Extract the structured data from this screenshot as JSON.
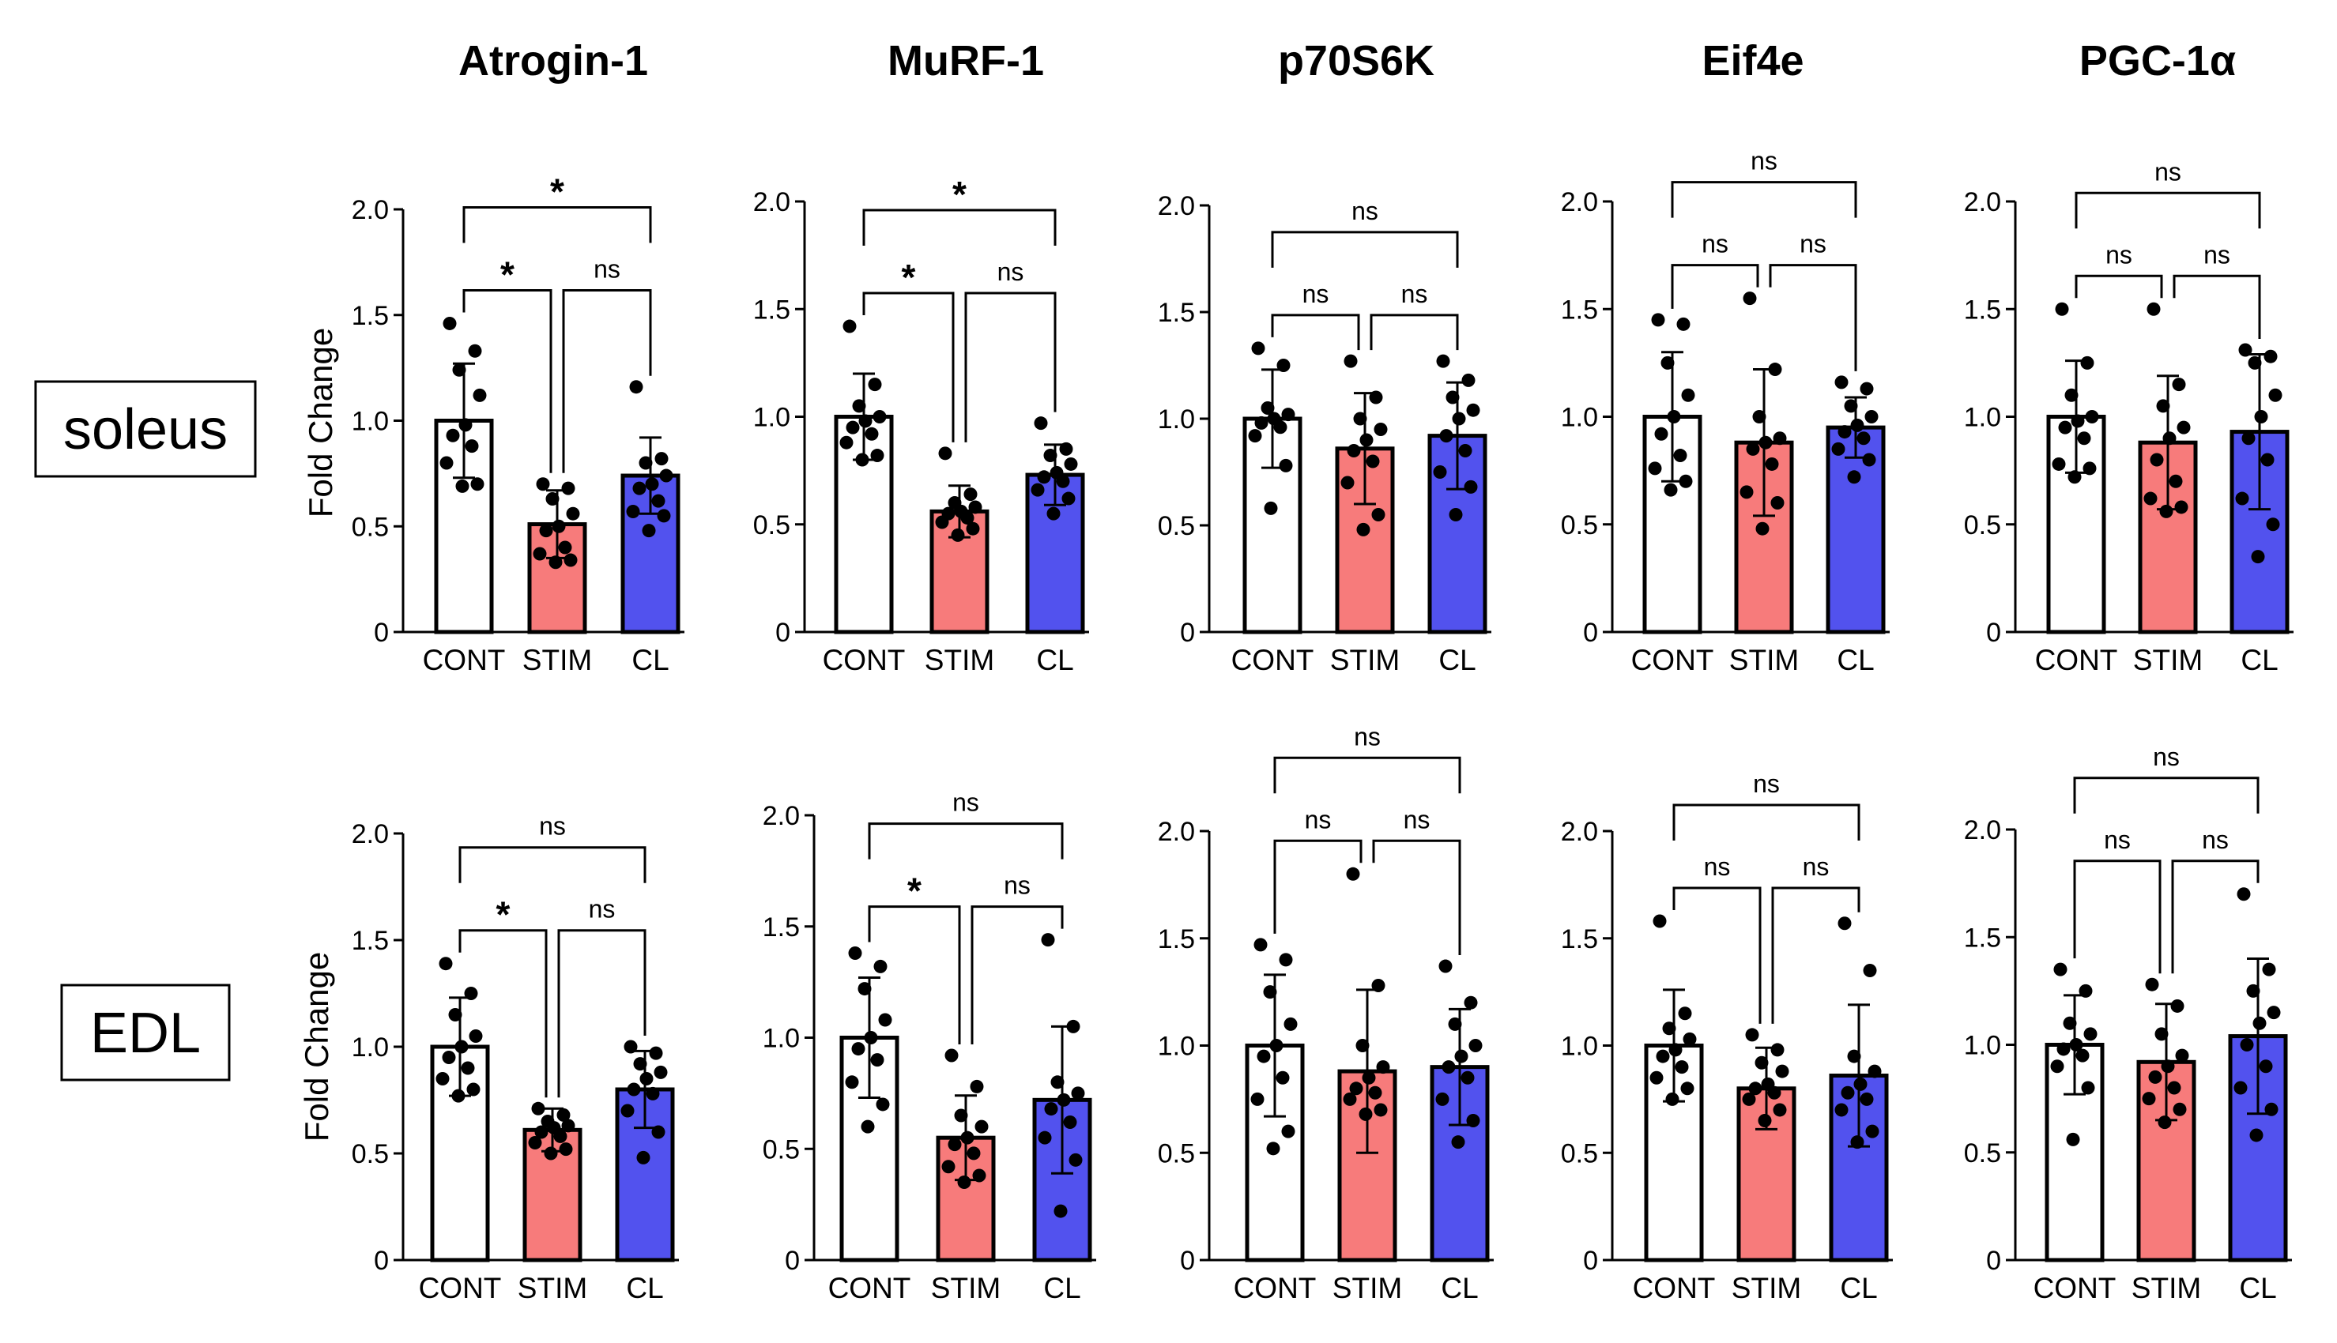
{
  "figure": {
    "row_labels": [
      "soleus",
      "EDL"
    ],
    "y_axis_label": "Fold Change",
    "colors": {
      "CONT": "#ffffff",
      "STIM": "#f77b7b",
      "CL": "#5252ee",
      "outline": "#000000"
    }
  },
  "chart_data": [
    {
      "type": "bar",
      "panel": "soleus-atrogin-1",
      "title": "Atrogin-1",
      "categories": [
        "CONT",
        "STIM",
        "CL"
      ],
      "ylabel": "Fold Change",
      "ylim": [
        0,
        2.0
      ],
      "yticks": [
        "0",
        "0.5",
        "1.0",
        "1.5",
        "2.0"
      ],
      "values": [
        1.0,
        0.51,
        0.74
      ],
      "sd": [
        0.27,
        0.16,
        0.18
      ],
      "points": [
        [
          1.46,
          1.33,
          1.24,
          1.12,
          0.98,
          0.93,
          0.88,
          0.8,
          0.7,
          0.69
        ],
        [
          0.7,
          0.68,
          0.63,
          0.56,
          0.5,
          0.48,
          0.4,
          0.37,
          0.34,
          0.33
        ],
        [
          1.16,
          0.82,
          0.8,
          0.74,
          0.7,
          0.68,
          0.62,
          0.57,
          0.55,
          0.48
        ]
      ],
      "comparisons": [
        {
          "pair": [
            0,
            1
          ],
          "label": "*"
        },
        {
          "pair": [
            1,
            2
          ],
          "label": "ns"
        },
        {
          "pair": [
            0,
            2
          ],
          "label": "*"
        }
      ]
    },
    {
      "type": "bar",
      "panel": "soleus-murf-1",
      "title": "MuRF-1",
      "categories": [
        "CONT",
        "STIM",
        "CL"
      ],
      "ylabel": "Fold Change",
      "ylim": [
        0,
        2.0
      ],
      "yticks": [
        "0",
        "0.5",
        "1.0",
        "1.5",
        "2.0"
      ],
      "values": [
        1.0,
        0.56,
        0.73
      ],
      "sd": [
        0.2,
        0.12,
        0.14
      ],
      "points": [
        [
          1.42,
          1.15,
          1.05,
          1.0,
          0.98,
          0.95,
          0.92,
          0.88,
          0.82,
          0.8
        ],
        [
          0.83,
          0.64,
          0.6,
          0.58,
          0.56,
          0.55,
          0.53,
          0.51,
          0.48,
          0.45
        ],
        [
          0.97,
          0.85,
          0.82,
          0.78,
          0.74,
          0.72,
          0.7,
          0.66,
          0.62,
          0.55
        ]
      ],
      "comparisons": [
        {
          "pair": [
            0,
            1
          ],
          "label": "*"
        },
        {
          "pair": [
            1,
            2
          ],
          "label": "ns"
        },
        {
          "pair": [
            0,
            2
          ],
          "label": "*"
        }
      ]
    },
    {
      "type": "bar",
      "panel": "soleus-p70s6k",
      "title": "p70S6K",
      "categories": [
        "CONT",
        "STIM",
        "CL"
      ],
      "ylabel": "Fold Change",
      "ylim": [
        0,
        2.0
      ],
      "yticks": [
        "0",
        "0.5",
        "1.0",
        "1.5",
        "2.0"
      ],
      "values": [
        1.0,
        0.86,
        0.92
      ],
      "sd": [
        0.23,
        0.26,
        0.25
      ],
      "points": [
        [
          1.33,
          1.25,
          1.05,
          1.02,
          1.0,
          0.98,
          0.96,
          0.92,
          0.78,
          0.58
        ],
        [
          1.27,
          1.1,
          1.0,
          0.95,
          0.9,
          0.85,
          0.8,
          0.7,
          0.55,
          0.48
        ],
        [
          1.27,
          1.18,
          1.1,
          1.04,
          1.0,
          0.92,
          0.85,
          0.75,
          0.68,
          0.55
        ]
      ],
      "comparisons": [
        {
          "pair": [
            0,
            1
          ],
          "label": "ns"
        },
        {
          "pair": [
            1,
            2
          ],
          "label": "ns"
        },
        {
          "pair": [
            0,
            2
          ],
          "label": "ns"
        }
      ]
    },
    {
      "type": "bar",
      "panel": "soleus-eif4e",
      "title": "Eif4e",
      "categories": [
        "CONT",
        "STIM",
        "CL"
      ],
      "ylabel": "Fold Change",
      "ylim": [
        0,
        2.0
      ],
      "yticks": [
        "0",
        "0.5",
        "1.0",
        "1.5",
        "2.0"
      ],
      "values": [
        1.0,
        0.88,
        0.95
      ],
      "sd": [
        0.3,
        0.34,
        0.14
      ],
      "points": [
        [
          1.45,
          1.43,
          1.25,
          1.1,
          1.0,
          0.92,
          0.82,
          0.76,
          0.7,
          0.66
        ],
        [
          1.55,
          1.22,
          1.0,
          0.9,
          0.88,
          0.85,
          0.78,
          0.65,
          0.6,
          0.48
        ],
        [
          1.16,
          1.13,
          1.05,
          1.0,
          0.96,
          0.93,
          0.9,
          0.85,
          0.8,
          0.72
        ]
      ],
      "comparisons": [
        {
          "pair": [
            0,
            1
          ],
          "label": "ns"
        },
        {
          "pair": [
            1,
            2
          ],
          "label": "ns"
        },
        {
          "pair": [
            0,
            2
          ],
          "label": "ns"
        }
      ]
    },
    {
      "type": "bar",
      "panel": "soleus-pgc-1a",
      "title": "PGC-1α",
      "categories": [
        "CONT",
        "STIM",
        "CL"
      ],
      "ylabel": "Fold Change",
      "ylim": [
        0,
        2.0
      ],
      "yticks": [
        "0",
        "0.5",
        "1.0",
        "1.5",
        "2.0"
      ],
      "values": [
        1.0,
        0.88,
        0.93
      ],
      "sd": [
        0.26,
        0.31,
        0.36
      ],
      "points": [
        [
          1.5,
          1.25,
          1.1,
          1.0,
          0.98,
          0.95,
          0.9,
          0.78,
          0.76,
          0.72
        ],
        [
          1.5,
          1.15,
          1.05,
          0.95,
          0.9,
          0.8,
          0.7,
          0.62,
          0.58,
          0.56
        ],
        [
          1.31,
          1.28,
          1.25,
          1.1,
          1.0,
          0.9,
          0.8,
          0.62,
          0.5,
          0.35
        ]
      ],
      "comparisons": [
        {
          "pair": [
            0,
            1
          ],
          "label": "ns"
        },
        {
          "pair": [
            1,
            2
          ],
          "label": "ns"
        },
        {
          "pair": [
            0,
            2
          ],
          "label": "ns"
        }
      ]
    },
    {
      "type": "bar",
      "panel": "edl-atrogin-1",
      "title": "Atrogin-1",
      "categories": [
        "CONT",
        "STIM",
        "CL"
      ],
      "ylabel": "Fold Change",
      "ylim": [
        0,
        2.0
      ],
      "yticks": [
        "0",
        "0.5",
        "1.0",
        "1.5",
        "2.0"
      ],
      "values": [
        1.0,
        0.61,
        0.8
      ],
      "sd": [
        0.23,
        0.1,
        0.18
      ],
      "points": [
        [
          1.39,
          1.25,
          1.15,
          1.05,
          1.0,
          0.95,
          0.9,
          0.85,
          0.8,
          0.77
        ],
        [
          0.71,
          0.68,
          0.65,
          0.63,
          0.62,
          0.6,
          0.58,
          0.55,
          0.52,
          0.5
        ],
        [
          1.0,
          0.97,
          0.92,
          0.88,
          0.85,
          0.8,
          0.78,
          0.7,
          0.6,
          0.48
        ]
      ],
      "comparisons": [
        {
          "pair": [
            0,
            1
          ],
          "label": "*"
        },
        {
          "pair": [
            1,
            2
          ],
          "label": "ns"
        },
        {
          "pair": [
            0,
            2
          ],
          "label": "ns"
        }
      ]
    },
    {
      "type": "bar",
      "panel": "edl-murf-1",
      "title": "MuRF-1",
      "categories": [
        "CONT",
        "STIM",
        "CL"
      ],
      "ylabel": "Fold Change",
      "ylim": [
        0,
        2.0
      ],
      "yticks": [
        "0",
        "0.5",
        "1.0",
        "1.5",
        "2.0"
      ],
      "values": [
        1.0,
        0.55,
        0.72
      ],
      "sd": [
        0.27,
        0.19,
        0.33
      ],
      "points": [
        [
          1.38,
          1.32,
          1.22,
          1.08,
          1.0,
          0.95,
          0.9,
          0.8,
          0.7,
          0.6
        ],
        [
          0.92,
          0.78,
          0.65,
          0.6,
          0.55,
          0.52,
          0.48,
          0.42,
          0.38,
          0.35
        ],
        [
          1.44,
          1.05,
          0.8,
          0.75,
          0.72,
          0.68,
          0.62,
          0.55,
          0.45,
          0.22
        ]
      ],
      "comparisons": [
        {
          "pair": [
            0,
            1
          ],
          "label": "*"
        },
        {
          "pair": [
            1,
            2
          ],
          "label": "ns"
        },
        {
          "pair": [
            0,
            2
          ],
          "label": "ns"
        }
      ]
    },
    {
      "type": "bar",
      "panel": "edl-p70s6k",
      "title": "p70S6K",
      "categories": [
        "CONT",
        "STIM",
        "CL"
      ],
      "ylabel": "Fold Change",
      "ylim": [
        0,
        2.0
      ],
      "yticks": [
        "0",
        "0.5",
        "1.0",
        "1.5",
        "2.0"
      ],
      "values": [
        1.0,
        0.88,
        0.9
      ],
      "sd": [
        0.33,
        0.38,
        0.27
      ],
      "points": [
        [
          1.47,
          1.4,
          1.25,
          1.1,
          1.0,
          0.95,
          0.85,
          0.75,
          0.6,
          0.52
        ],
        [
          1.8,
          1.28,
          1.0,
          0.9,
          0.85,
          0.8,
          0.78,
          0.75,
          0.7,
          0.68
        ],
        [
          1.37,
          1.2,
          1.1,
          1.0,
          0.95,
          0.9,
          0.85,
          0.75,
          0.65,
          0.55
        ]
      ],
      "comparisons": [
        {
          "pair": [
            0,
            1
          ],
          "label": "ns"
        },
        {
          "pair": [
            1,
            2
          ],
          "label": "ns"
        },
        {
          "pair": [
            0,
            2
          ],
          "label": "ns"
        }
      ]
    },
    {
      "type": "bar",
      "panel": "edl-eif4e",
      "title": "Eif4e",
      "categories": [
        "CONT",
        "STIM",
        "CL"
      ],
      "ylabel": "Fold Change",
      "ylim": [
        0,
        2.0
      ],
      "yticks": [
        "0",
        "0.5",
        "1.0",
        "1.5",
        "2.0"
      ],
      "values": [
        1.0,
        0.8,
        0.86
      ],
      "sd": [
        0.26,
        0.19,
        0.33
      ],
      "points": [
        [
          1.58,
          1.15,
          1.08,
          1.03,
          0.98,
          0.95,
          0.9,
          0.85,
          0.8,
          0.75
        ],
        [
          1.05,
          0.98,
          0.92,
          0.88,
          0.82,
          0.8,
          0.78,
          0.75,
          0.7,
          0.65
        ],
        [
          1.57,
          1.35,
          0.95,
          0.88,
          0.82,
          0.78,
          0.75,
          0.7,
          0.6,
          0.55
        ]
      ],
      "comparisons": [
        {
          "pair": [
            0,
            1
          ],
          "label": "ns"
        },
        {
          "pair": [
            1,
            2
          ],
          "label": "ns"
        },
        {
          "pair": [
            0,
            2
          ],
          "label": "ns"
        }
      ]
    },
    {
      "type": "bar",
      "panel": "edl-pgc-1a",
      "title": "PGC-1α",
      "categories": [
        "CONT",
        "STIM",
        "CL"
      ],
      "ylabel": "Fold Change",
      "ylim": [
        0,
        2.0
      ],
      "yticks": [
        "0",
        "0.5",
        "1.0",
        "1.5",
        "2.0"
      ],
      "values": [
        1.0,
        0.92,
        1.04
      ],
      "sd": [
        0.23,
        0.27,
        0.36
      ],
      "points": [
        [
          1.35,
          1.25,
          1.1,
          1.05,
          1.0,
          0.98,
          0.95,
          0.9,
          0.8,
          0.56
        ],
        [
          1.28,
          1.18,
          1.05,
          0.95,
          0.9,
          0.85,
          0.8,
          0.75,
          0.7,
          0.64
        ],
        [
          1.7,
          1.35,
          1.25,
          1.15,
          1.1,
          1.0,
          0.9,
          0.8,
          0.7,
          0.58
        ]
      ],
      "comparisons": [
        {
          "pair": [
            0,
            1
          ],
          "label": "ns"
        },
        {
          "pair": [
            1,
            2
          ],
          "label": "ns"
        },
        {
          "pair": [
            0,
            2
          ],
          "label": "ns"
        }
      ]
    }
  ]
}
